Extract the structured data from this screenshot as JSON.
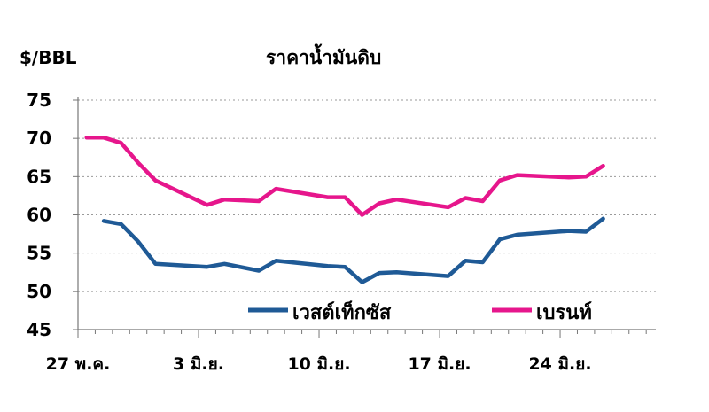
{
  "chart_data": {
    "type": "line",
    "title": "ราคาน้ำมันดิบ",
    "ylabel": "$/BBL",
    "xlabel": "",
    "ylim": [
      45,
      75
    ],
    "yticks": [
      45,
      50,
      55,
      60,
      65,
      70,
      75
    ],
    "x_ticks": [
      {
        "label": "27 พ.ค.",
        "day": 0
      },
      {
        "label": "3 มิ.ย.",
        "day": 7
      },
      {
        "label": "10 มิ.ย.",
        "day": 14
      },
      {
        "label": "17 มิ.ย.",
        "day": 21
      },
      {
        "label": "24 มิ.ย.",
        "day": 28
      }
    ],
    "xlim": [
      0,
      33
    ],
    "grid": true,
    "legend_position": "bottom-right",
    "series": [
      {
        "name": "เวสต์เท็กซัส",
        "color": "#1f5a96",
        "points": [
          [
            1.5,
            59.2
          ],
          [
            2.5,
            58.8
          ],
          [
            3.5,
            56.5
          ],
          [
            4.5,
            53.6
          ],
          [
            7.5,
            53.2
          ],
          [
            8.5,
            53.6
          ],
          [
            10.5,
            52.7
          ],
          [
            11.5,
            54.0
          ],
          [
            14.5,
            53.3
          ],
          [
            15.5,
            53.2
          ],
          [
            16.5,
            51.2
          ],
          [
            17.5,
            52.4
          ],
          [
            18.5,
            52.5
          ],
          [
            21.5,
            52.0
          ],
          [
            22.5,
            54.0
          ],
          [
            23.5,
            53.8
          ],
          [
            24.5,
            56.8
          ],
          [
            25.5,
            57.4
          ],
          [
            28.5,
            57.9
          ],
          [
            29.5,
            57.8
          ],
          [
            30.5,
            59.5
          ]
        ]
      },
      {
        "name": "เบรนท์",
        "color": "#e6168c",
        "points": [
          [
            0.5,
            70.1
          ],
          [
            1.5,
            70.1
          ],
          [
            2.5,
            69.4
          ],
          [
            3.5,
            66.8
          ],
          [
            4.5,
            64.5
          ],
          [
            7.5,
            61.3
          ],
          [
            8.5,
            62.0
          ],
          [
            10.5,
            61.8
          ],
          [
            11.5,
            63.4
          ],
          [
            14.5,
            62.3
          ],
          [
            15.5,
            62.3
          ],
          [
            16.5,
            60.0
          ],
          [
            17.5,
            61.5
          ],
          [
            18.5,
            62.0
          ],
          [
            21.5,
            61.0
          ],
          [
            22.5,
            62.2
          ],
          [
            23.5,
            61.8
          ],
          [
            24.5,
            64.5
          ],
          [
            25.5,
            65.2
          ],
          [
            28.5,
            64.9
          ],
          [
            29.5,
            65.0
          ],
          [
            30.5,
            66.4
          ]
        ]
      }
    ]
  }
}
